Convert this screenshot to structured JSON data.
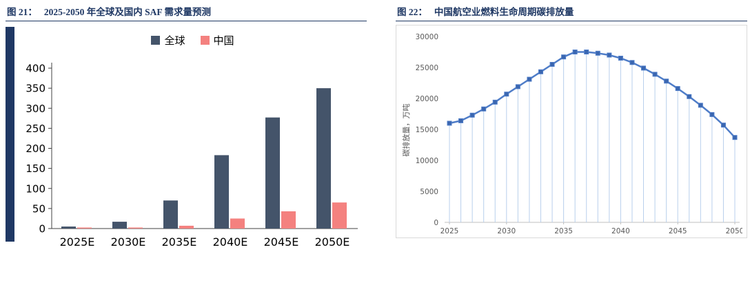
{
  "chart_data": [
    {
      "id": "fig21",
      "type": "bar",
      "title_prefix": "图 21：",
      "title": "2025-2050 年全球及国内 SAF 需求量预测",
      "categories": [
        "2025E",
        "2030E",
        "2035E",
        "2040E",
        "2045E",
        "2050E"
      ],
      "series": [
        {
          "name": "全球",
          "color": "#44546A",
          "values": [
            5,
            17,
            70,
            183,
            277,
            350
          ]
        },
        {
          "name": "中国",
          "color": "#F4817F",
          "values": [
            1,
            2,
            7,
            25,
            43,
            65
          ]
        }
      ],
      "ylim": [
        0,
        400
      ],
      "yticks": [
        0,
        50,
        100,
        150,
        200,
        250,
        300,
        350,
        400
      ],
      "legend_position": "top",
      "grid": false,
      "axis_color": "#404040",
      "label_color": "#000000"
    },
    {
      "id": "fig22",
      "type": "line",
      "title_prefix": "图 22：",
      "title": "中国航空业燃料生命周期碳排放量",
      "ylabel": "碳排放量，万吨",
      "x": [
        2025,
        2026,
        2027,
        2028,
        2029,
        2030,
        2031,
        2032,
        2033,
        2034,
        2035,
        2036,
        2037,
        2038,
        2039,
        2040,
        2041,
        2042,
        2043,
        2044,
        2045,
        2046,
        2047,
        2048,
        2049,
        2050
      ],
      "values": [
        16000,
        16400,
        17300,
        18300,
        19400,
        20700,
        21900,
        23100,
        24300,
        25500,
        26700,
        27500,
        27500,
        27300,
        27000,
        26500,
        25800,
        24900,
        23900,
        22800,
        21600,
        20300,
        18900,
        17400,
        15700,
        13700
      ],
      "ylim": [
        0,
        30000
      ],
      "yticks": [
        0,
        5000,
        10000,
        15000,
        20000,
        25000,
        30000
      ],
      "xticks": [
        2025,
        2030,
        2035,
        2040,
        2045,
        2050
      ],
      "marker": "square",
      "line_color": "#4F7DC8",
      "marker_color": "#3A66B0",
      "stem_color": "#B8CFEC",
      "axis_color": "#BFBFBF",
      "label_color": "#595959",
      "grid": false,
      "legend_position": "none"
    }
  ],
  "colors": {
    "caption": "#1F3864",
    "accent_bar": "#1F3864",
    "panel_border": "#D9D9D9",
    "background": "#ffffff"
  }
}
